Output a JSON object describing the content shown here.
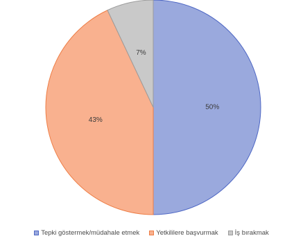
{
  "chart_data": {
    "type": "pie",
    "title": "",
    "legend_position": "bottom",
    "slices": [
      {
        "label": "Tepki göstermek/müdahale etmek",
        "value": 50,
        "display": "50%",
        "color": "#9aa9dd",
        "stroke": "#4e67c4"
      },
      {
        "label": "Yetkililere başvurmak",
        "value": 43,
        "display": "43%",
        "color": "#f9b18f",
        "stroke": "#ee7d45"
      },
      {
        "label": "İş bırakmak",
        "value": 7,
        "display": "7%",
        "color": "#c9c9c9",
        "stroke": "#9c9c9c"
      }
    ]
  }
}
